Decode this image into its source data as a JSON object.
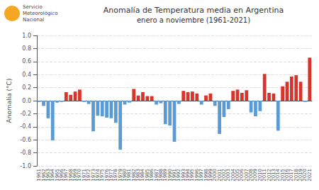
{
  "chart_data": {
    "type": "bar",
    "title": "Anomalía de Temperatura media en Argentina",
    "subtitle": "enero a noviembre (1961-2021)",
    "ylabel": "Anomalía (°C)",
    "annotations": [
      "Servicio",
      "Meteorológico",
      "Nacional"
    ],
    "categories": [
      1961,
      1962,
      1963,
      1964,
      1965,
      1966,
      1967,
      1968,
      1969,
      1970,
      1971,
      1972,
      1973,
      1974,
      1975,
      1976,
      1977,
      1978,
      1979,
      1980,
      1981,
      1982,
      1983,
      1984,
      1985,
      1986,
      1987,
      1988,
      1989,
      1990,
      1991,
      1992,
      1993,
      1994,
      1995,
      1996,
      1997,
      1998,
      1999,
      2000,
      2001,
      2002,
      2003,
      2004,
      2005,
      2006,
      2007,
      2008,
      2009,
      2010,
      2011,
      2012,
      2013,
      2014,
      2015,
      2016,
      2017,
      2018,
      2019,
      2020,
      2021
    ],
    "values": [
      -0.02,
      -0.08,
      -0.27,
      -0.61,
      -0.03,
      -0.02,
      0.13,
      0.09,
      0.14,
      0.17,
      -0.02,
      -0.05,
      -0.47,
      -0.23,
      -0.24,
      -0.26,
      -0.27,
      -0.34,
      -0.75,
      -0.06,
      -0.03,
      0.18,
      0.08,
      0.13,
      0.07,
      0.07,
      -0.06,
      -0.04,
      -0.36,
      -0.38,
      -0.63,
      -0.05,
      0.15,
      0.13,
      0.14,
      0.11,
      -0.06,
      0.08,
      0.11,
      -0.08,
      -0.51,
      -0.25,
      -0.13,
      0.15,
      0.17,
      0.12,
      0.16,
      -0.18,
      -0.24,
      -0.16,
      0.41,
      0.12,
      0.11,
      -0.46,
      0.22,
      0.29,
      0.37,
      0.39,
      0.29,
      -0.02,
      0.66
    ],
    "colors": [
      "#5b9bd5",
      "#5b9bd5",
      "#5b9bd5",
      "#5b9bd5",
      "#5b9bd5",
      "#5b9bd5",
      "#d9342b",
      "#d9342b",
      "#d9342b",
      "#d9342b",
      "#5b9bd5",
      "#5b9bd5",
      "#5b9bd5",
      "#5b9bd5",
      "#5b9bd5",
      "#5b9bd5",
      "#5b9bd5",
      "#5b9bd5",
      "#5b9bd5",
      "#5b9bd5",
      "#5b9bd5",
      "#d9342b",
      "#d9342b",
      "#d9342b",
      "#d9342b",
      "#d9342b",
      "#5b9bd5",
      "#5b9bd5",
      "#5b9bd5",
      "#5b9bd5",
      "#5b9bd5",
      "#5b9bd5",
      "#d9342b",
      "#d9342b",
      "#d9342b",
      "#d9342b",
      "#5b9bd5",
      "#d9342b",
      "#d9342b",
      "#5b9bd5",
      "#5b9bd5",
      "#5b9bd5",
      "#5b9bd5",
      "#d9342b",
      "#d9342b",
      "#d9342b",
      "#d9342b",
      "#5b9bd5",
      "#5b9bd5",
      "#5b9bd5",
      "#d9342b",
      "#d9342b",
      "#d9342b",
      "#5b9bd5",
      "#d9342b",
      "#d9342b",
      "#d9342b",
      "#d9342b",
      "#d9342b",
      "#5b9bd5",
      "#d9342b"
    ],
    "ylim": [
      -1.0,
      1.0
    ],
    "yticks": [
      {
        "value": -1.0,
        "label": "-1.0"
      },
      -0.8,
      -0.6,
      -0.4,
      -0.2,
      {
        "value": 0.0,
        "label": "0.0"
      },
      0.2,
      0.4,
      0.6,
      0.8,
      {
        "value": 1.0,
        "label": "1.0"
      }
    ],
    "grid": true
  }
}
